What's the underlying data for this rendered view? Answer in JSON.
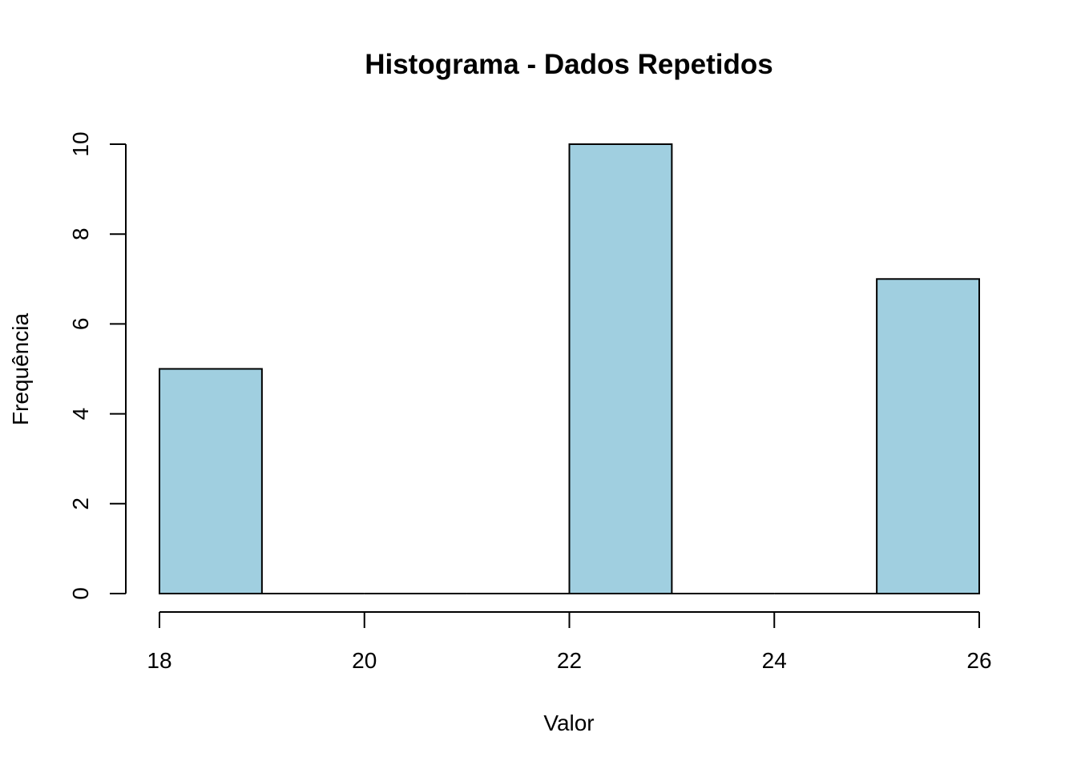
{
  "chart_data": {
    "type": "bar",
    "title": "Histograma - Dados Repetidos",
    "xlabel": "Valor",
    "ylabel": "Frequência",
    "bins": [
      {
        "start": 18,
        "end": 19,
        "count": 5
      },
      {
        "start": 19,
        "end": 20,
        "count": 0
      },
      {
        "start": 20,
        "end": 21,
        "count": 0
      },
      {
        "start": 21,
        "end": 22,
        "count": 0
      },
      {
        "start": 22,
        "end": 23,
        "count": 10
      },
      {
        "start": 23,
        "end": 24,
        "count": 0
      },
      {
        "start": 24,
        "end": 25,
        "count": 0
      },
      {
        "start": 25,
        "end": 26,
        "count": 7
      }
    ],
    "xlim": [
      18,
      26
    ],
    "ylim": [
      0,
      10
    ],
    "x_ticks": [
      "18",
      "20",
      "22",
      "24",
      "26"
    ],
    "y_ticks": [
      "0",
      "2",
      "4",
      "6",
      "8",
      "10"
    ],
    "grid": false,
    "bar_color": "#a0cfe0",
    "border_color": "#000000"
  }
}
